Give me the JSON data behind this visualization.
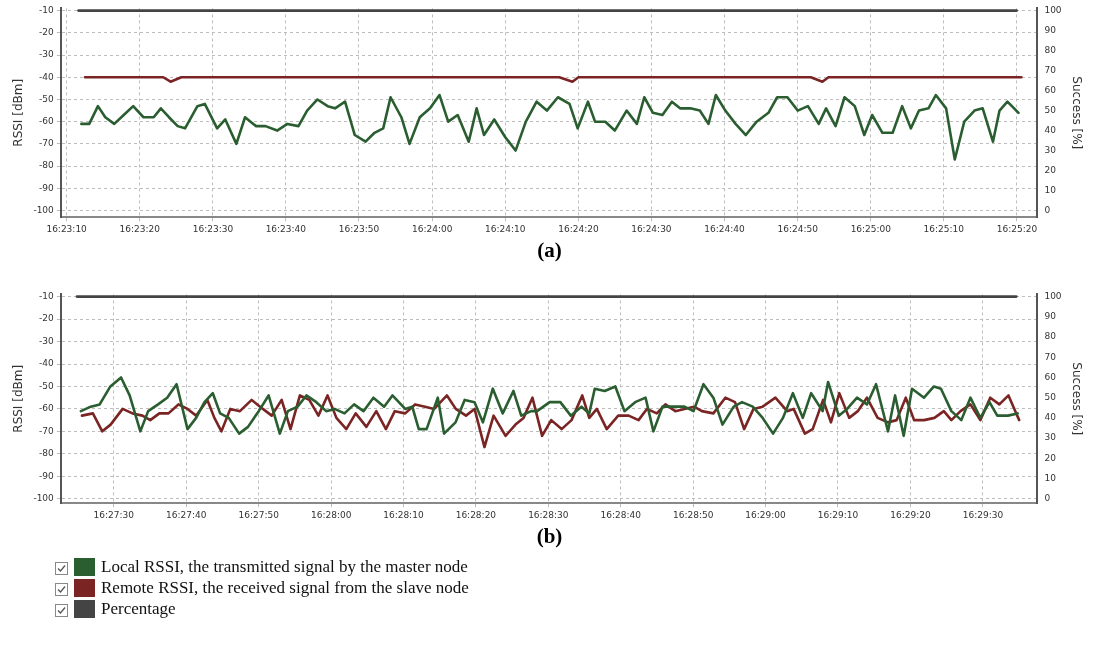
{
  "chart_data": [
    {
      "type": "line",
      "title": "(a)",
      "ylabel": "RSSI [dBm]",
      "y2label": "Success [%]",
      "grid": true,
      "xlim": [
        16.38589,
        16.423
      ],
      "xticks": [
        {
          "value": 16.38611,
          "label": "16:23:10"
        },
        {
          "value": 16.38889,
          "label": "16:23:20"
        },
        {
          "value": 16.39167,
          "label": "16:23:30"
        },
        {
          "value": 16.39444,
          "label": "16:23:40"
        },
        {
          "value": 16.39722,
          "label": "16:23:50"
        },
        {
          "value": 16.4,
          "label": "16:24:00"
        },
        {
          "value": 16.40278,
          "label": "16:24:10"
        },
        {
          "value": 16.40556,
          "label": "16:24:20"
        },
        {
          "value": 16.40833,
          "label": "16:24:30"
        },
        {
          "value": 16.41111,
          "label": "16:24:40"
        },
        {
          "value": 16.41389,
          "label": "16:24:50"
        },
        {
          "value": 16.41667,
          "label": "16:25:00"
        },
        {
          "value": 16.41944,
          "label": "16:25:10"
        },
        {
          "value": 16.42222,
          "label": "16:25:20"
        }
      ],
      "ylim": [
        -103,
        -9
      ],
      "yticks": [
        -100,
        -90,
        -80,
        -70,
        -60,
        -50,
        -40,
        -30,
        -20,
        -10
      ],
      "y2lim": [
        -3.3,
        101.1
      ],
      "y2ticks": [
        0,
        10,
        20,
        30,
        40,
        50,
        60,
        70,
        80,
        90,
        100
      ],
      "series": [
        {
          "color": "#2a5e30",
          "x": [
            16.38667,
            16.38697,
            16.3873,
            16.38758,
            16.38792,
            16.38828,
            16.38864,
            16.38903,
            16.38942,
            16.38969,
            16.39,
            16.39033,
            16.39061,
            16.39108,
            16.39136,
            16.39183,
            16.39214,
            16.39256,
            16.39289,
            16.39331,
            16.39367,
            16.39411,
            16.3945,
            16.39492,
            16.39525,
            16.39564,
            16.39603,
            16.39631,
            16.39669,
            16.39706,
            16.39747,
            16.39781,
            16.39814,
            16.39842,
            16.39883,
            16.39914,
            16.39953,
            16.39992,
            16.40028,
            16.40061,
            16.40097,
            16.40139,
            16.40169,
            16.40197,
            16.40236,
            16.40278,
            16.40317,
            16.40356,
            16.40397,
            16.40436,
            16.40478,
            16.40522,
            16.40553,
            16.40592,
            16.40619,
            16.40658,
            16.40694,
            16.40739,
            16.40778,
            16.40806,
            16.40839,
            16.40875,
            16.40911,
            16.40942,
            16.40981,
            16.41017,
            16.4105,
            16.41078,
            16.41114,
            16.41153,
            16.41192,
            16.41233,
            16.41278,
            16.41311,
            16.4135,
            16.41389,
            16.41428,
            16.41469,
            16.41497,
            16.41533,
            16.41567,
            16.41606,
            16.41642,
            16.41672,
            16.41711,
            16.4175,
            16.41786,
            16.41819,
            16.4185,
            16.41886,
            16.41914,
            16.41953,
            16.41986,
            16.42022,
            16.42061,
            16.42092,
            16.42131,
            16.42156,
            16.42186,
            16.42228
          ],
          "values": [
            -61,
            -61,
            -53,
            -58,
            -61,
            -57,
            -53,
            -58,
            -58,
            -54,
            -58,
            -62,
            -63,
            -53,
            -52,
            -63,
            -59,
            -70,
            -58,
            -62,
            -62,
            -64,
            -61,
            -62,
            -55,
            -50,
            -53,
            -54,
            -51,
            -66,
            -69,
            -65,
            -63,
            -49,
            -58,
            -70,
            -58,
            -54,
            -48,
            -60,
            -57,
            -69,
            -54,
            -66,
            -59,
            -67,
            -73,
            -60,
            -51,
            -55,
            -49,
            -52,
            -63,
            -51,
            -60,
            -60,
            -64,
            -55,
            -61,
            -49,
            -56,
            -57,
            -51,
            -54,
            -54,
            -55,
            -61,
            -48,
            -55,
            -61,
            -66,
            -60,
            -56,
            -49,
            -49,
            -55,
            -53,
            -61,
            -54,
            -62,
            -49,
            -53,
            -66,
            -57,
            -65,
            -65,
            -53,
            -63,
            -55,
            -54,
            -48,
            -54,
            -77,
            -60,
            -55,
            -54,
            -69,
            -55,
            -51,
            -56
          ]
        },
        {
          "color": "#7b2424",
          "x": [
            16.38681,
            16.38978,
            16.39006,
            16.39047,
            16.40483,
            16.40533,
            16.40556,
            16.41439,
            16.41483,
            16.41506,
            16.42239
          ],
          "values": [
            -40,
            -40,
            -42,
            -40,
            -40,
            -42,
            -40,
            -40,
            -42,
            -40,
            -40
          ]
        },
        {
          "color": "#444444",
          "axis": "y2",
          "x": [
            16.38656,
            16.42221
          ],
          "values": [
            100,
            100
          ]
        }
      ]
    },
    {
      "type": "line",
      "title": "(b)",
      "ylabel": "RSSI [dBm]",
      "y2label": "Success [%]",
      "grid": true,
      "legend": "bottom left",
      "xlim": [
        16.4563,
        16.49376
      ],
      "xticks": [
        {
          "value": 16.45833,
          "label": "16:27:30"
        },
        {
          "value": 16.46111,
          "label": "16:27:40"
        },
        {
          "value": 16.46389,
          "label": "16:27:50"
        },
        {
          "value": 16.46667,
          "label": "16:28:00"
        },
        {
          "value": 16.46944,
          "label": "16:28:10"
        },
        {
          "value": 16.47222,
          "label": "16:28:20"
        },
        {
          "value": 16.475,
          "label": "16:28:30"
        },
        {
          "value": 16.47778,
          "label": "16:28:40"
        },
        {
          "value": 16.48056,
          "label": "16:28:50"
        },
        {
          "value": 16.48333,
          "label": "16:29:00"
        },
        {
          "value": 16.48611,
          "label": "16:29:10"
        },
        {
          "value": 16.48889,
          "label": "16:29:20"
        },
        {
          "value": 16.49167,
          "label": "16:29:30"
        }
      ],
      "ylim": [
        -102,
        -9
      ],
      "yticks": [
        -100,
        -90,
        -80,
        -70,
        -60,
        -50,
        -40,
        -30,
        -20,
        -10
      ],
      "y2lim": [
        -2.2,
        101.1
      ],
      "y2ticks": [
        0,
        10,
        20,
        30,
        40,
        50,
        60,
        70,
        80,
        90,
        100
      ],
      "series": [
        {
          "name": "Local RSSI, the transmitted signal by the master node",
          "color": "#2a5e30",
          "x": [
            16.45707,
            16.45745,
            16.45779,
            16.4582,
            16.45861,
            16.45894,
            16.45935,
            16.45965,
            16.46003,
            16.46038,
            16.46074,
            16.46116,
            16.46149,
            16.46181,
            16.46213,
            16.46241,
            16.46274,
            16.46314,
            16.46348,
            16.46389,
            16.46427,
            16.4647,
            16.46501,
            16.46538,
            16.46572,
            16.4661,
            16.46648,
            16.4668,
            16.46718,
            16.46755,
            16.46791,
            16.46829,
            16.4687,
            16.46902,
            16.46951,
            16.46978,
            16.47003,
            16.47033,
            16.47076,
            16.471,
            16.47144,
            16.47179,
            16.47217,
            16.47249,
            16.47287,
            16.47325,
            16.47366,
            16.47396,
            16.47434,
            16.47457,
            16.47505,
            16.47546,
            16.47586,
            16.47627,
            16.47657,
            16.47678,
            16.47716,
            16.47757,
            16.47792,
            16.47833,
            16.47873,
            16.47903,
            16.47938,
            16.47981,
            16.48022,
            16.48057,
            16.48095,
            16.48133,
            16.48168,
            16.48211,
            16.48243,
            16.48284,
            16.48322,
            16.48362,
            16.484,
            16.48438,
            16.48476,
            16.48508,
            16.48552,
            16.48573,
            16.48614,
            16.48646,
            16.48684,
            16.48722,
            16.48757,
            16.48803,
            16.4883,
            16.48863,
            16.48895,
            16.48941,
            16.48979,
            16.49006,
            16.49046,
            16.49084,
            16.49119,
            16.49157,
            16.49192,
            16.49222,
            16.49263,
            16.493
          ],
          "values": [
            -61,
            -59,
            -58,
            -50,
            -46,
            -54,
            -70,
            -61,
            -58,
            -55,
            -49,
            -69,
            -64,
            -57,
            -53,
            -62,
            -64,
            -71,
            -68,
            -61,
            -54,
            -71,
            -61,
            -59,
            -54,
            -57,
            -61,
            -60,
            -62,
            -58,
            -61,
            -55,
            -59,
            -54,
            -60,
            -59,
            -69,
            -69,
            -55,
            -71,
            -66,
            -56,
            -57,
            -66,
            -51,
            -62,
            -52,
            -63,
            -61,
            -61,
            -57,
            -57,
            -63,
            -59,
            -62,
            -51,
            -52,
            -50,
            -61,
            -57,
            -55,
            -70,
            -59,
            -59,
            -59,
            -61,
            -49,
            -55,
            -67,
            -59,
            -57,
            -59,
            -64,
            -71,
            -64,
            -53,
            -64,
            -53,
            -61,
            -48,
            -63,
            -60,
            -55,
            -58,
            -49,
            -70,
            -54,
            -72,
            -51,
            -55,
            -50,
            -51,
            -61,
            -65,
            -55,
            -64,
            -57,
            -63,
            -63,
            -62
          ]
        },
        {
          "name": "Remote RSSI, the received signal from the slave node",
          "color": "#7b2424",
          "x": [
            16.45711,
            16.45753,
            16.45789,
            16.45821,
            16.45867,
            16.45905,
            16.45943,
            16.45973,
            16.46008,
            16.46043,
            16.46081,
            16.46116,
            16.46149,
            16.46192,
            16.46219,
            16.46246,
            16.4628,
            16.46317,
            16.46362,
            16.46405,
            16.46439,
            16.46477,
            16.46511,
            16.46547,
            16.46583,
            16.46618,
            16.46653,
            16.46687,
            16.46725,
            16.46761,
            16.46802,
            16.4684,
            16.46877,
            16.46911,
            16.46951,
            16.46989,
            16.47027,
            16.47062,
            16.47111,
            16.47145,
            16.47184,
            16.47217,
            16.47255,
            16.4729,
            16.47336,
            16.47374,
            16.47405,
            16.47439,
            16.47476,
            16.47511,
            16.47551,
            16.47589,
            16.4763,
            16.47657,
            16.47686,
            16.47724,
            16.47768,
            16.47808,
            16.47846,
            16.47878,
            16.47916,
            16.47949,
            16.47987,
            16.48022,
            16.48059,
            16.48089,
            16.48133,
            16.48179,
            16.48216,
            16.48251,
            16.48287,
            16.48322,
            16.48371,
            16.48416,
            16.48441,
            16.48484,
            16.48514,
            16.48554,
            16.48584,
            16.48616,
            16.48654,
            16.48687,
            16.48722,
            16.48763,
            16.48803,
            16.48836,
            16.48871,
            16.48903,
            16.48941,
            16.48981,
            16.49017,
            16.49046,
            16.49081,
            16.49119,
            16.49157,
            16.49195,
            16.4923,
            16.49265,
            16.49306
          ],
          "values": [
            -63,
            -62,
            -70,
            -67,
            -60,
            -62,
            -63,
            -65,
            -62,
            -62,
            -58,
            -60,
            -63,
            -56,
            -64,
            -70,
            -60,
            -61,
            -56,
            -60,
            -63,
            -56,
            -69,
            -54,
            -56,
            -63,
            -54,
            -64,
            -69,
            -62,
            -68,
            -61,
            -69,
            -61,
            -62,
            -58,
            -59,
            -60,
            -54,
            -60,
            -63,
            -60,
            -77,
            -63,
            -72,
            -67,
            -64,
            -55,
            -72,
            -65,
            -69,
            -65,
            -54,
            -64,
            -60,
            -69,
            -63,
            -63,
            -65,
            -60,
            -62,
            -58,
            -61,
            -60,
            -59,
            -61,
            -62,
            -55,
            -57,
            -69,
            -60,
            -59,
            -55,
            -61,
            -60,
            -71,
            -69,
            -56,
            -66,
            -53,
            -64,
            -61,
            -55,
            -64,
            -66,
            -65,
            -55,
            -65,
            -65,
            -64,
            -61,
            -65,
            -61,
            -58,
            -65,
            -55,
            -58,
            -54,
            -65
          ]
        },
        {
          "name": "Percentage",
          "color": "#444444",
          "axis": "y2",
          "x": [
            16.45692,
            16.49295
          ],
          "values": [
            100,
            100
          ]
        }
      ]
    }
  ]
}
